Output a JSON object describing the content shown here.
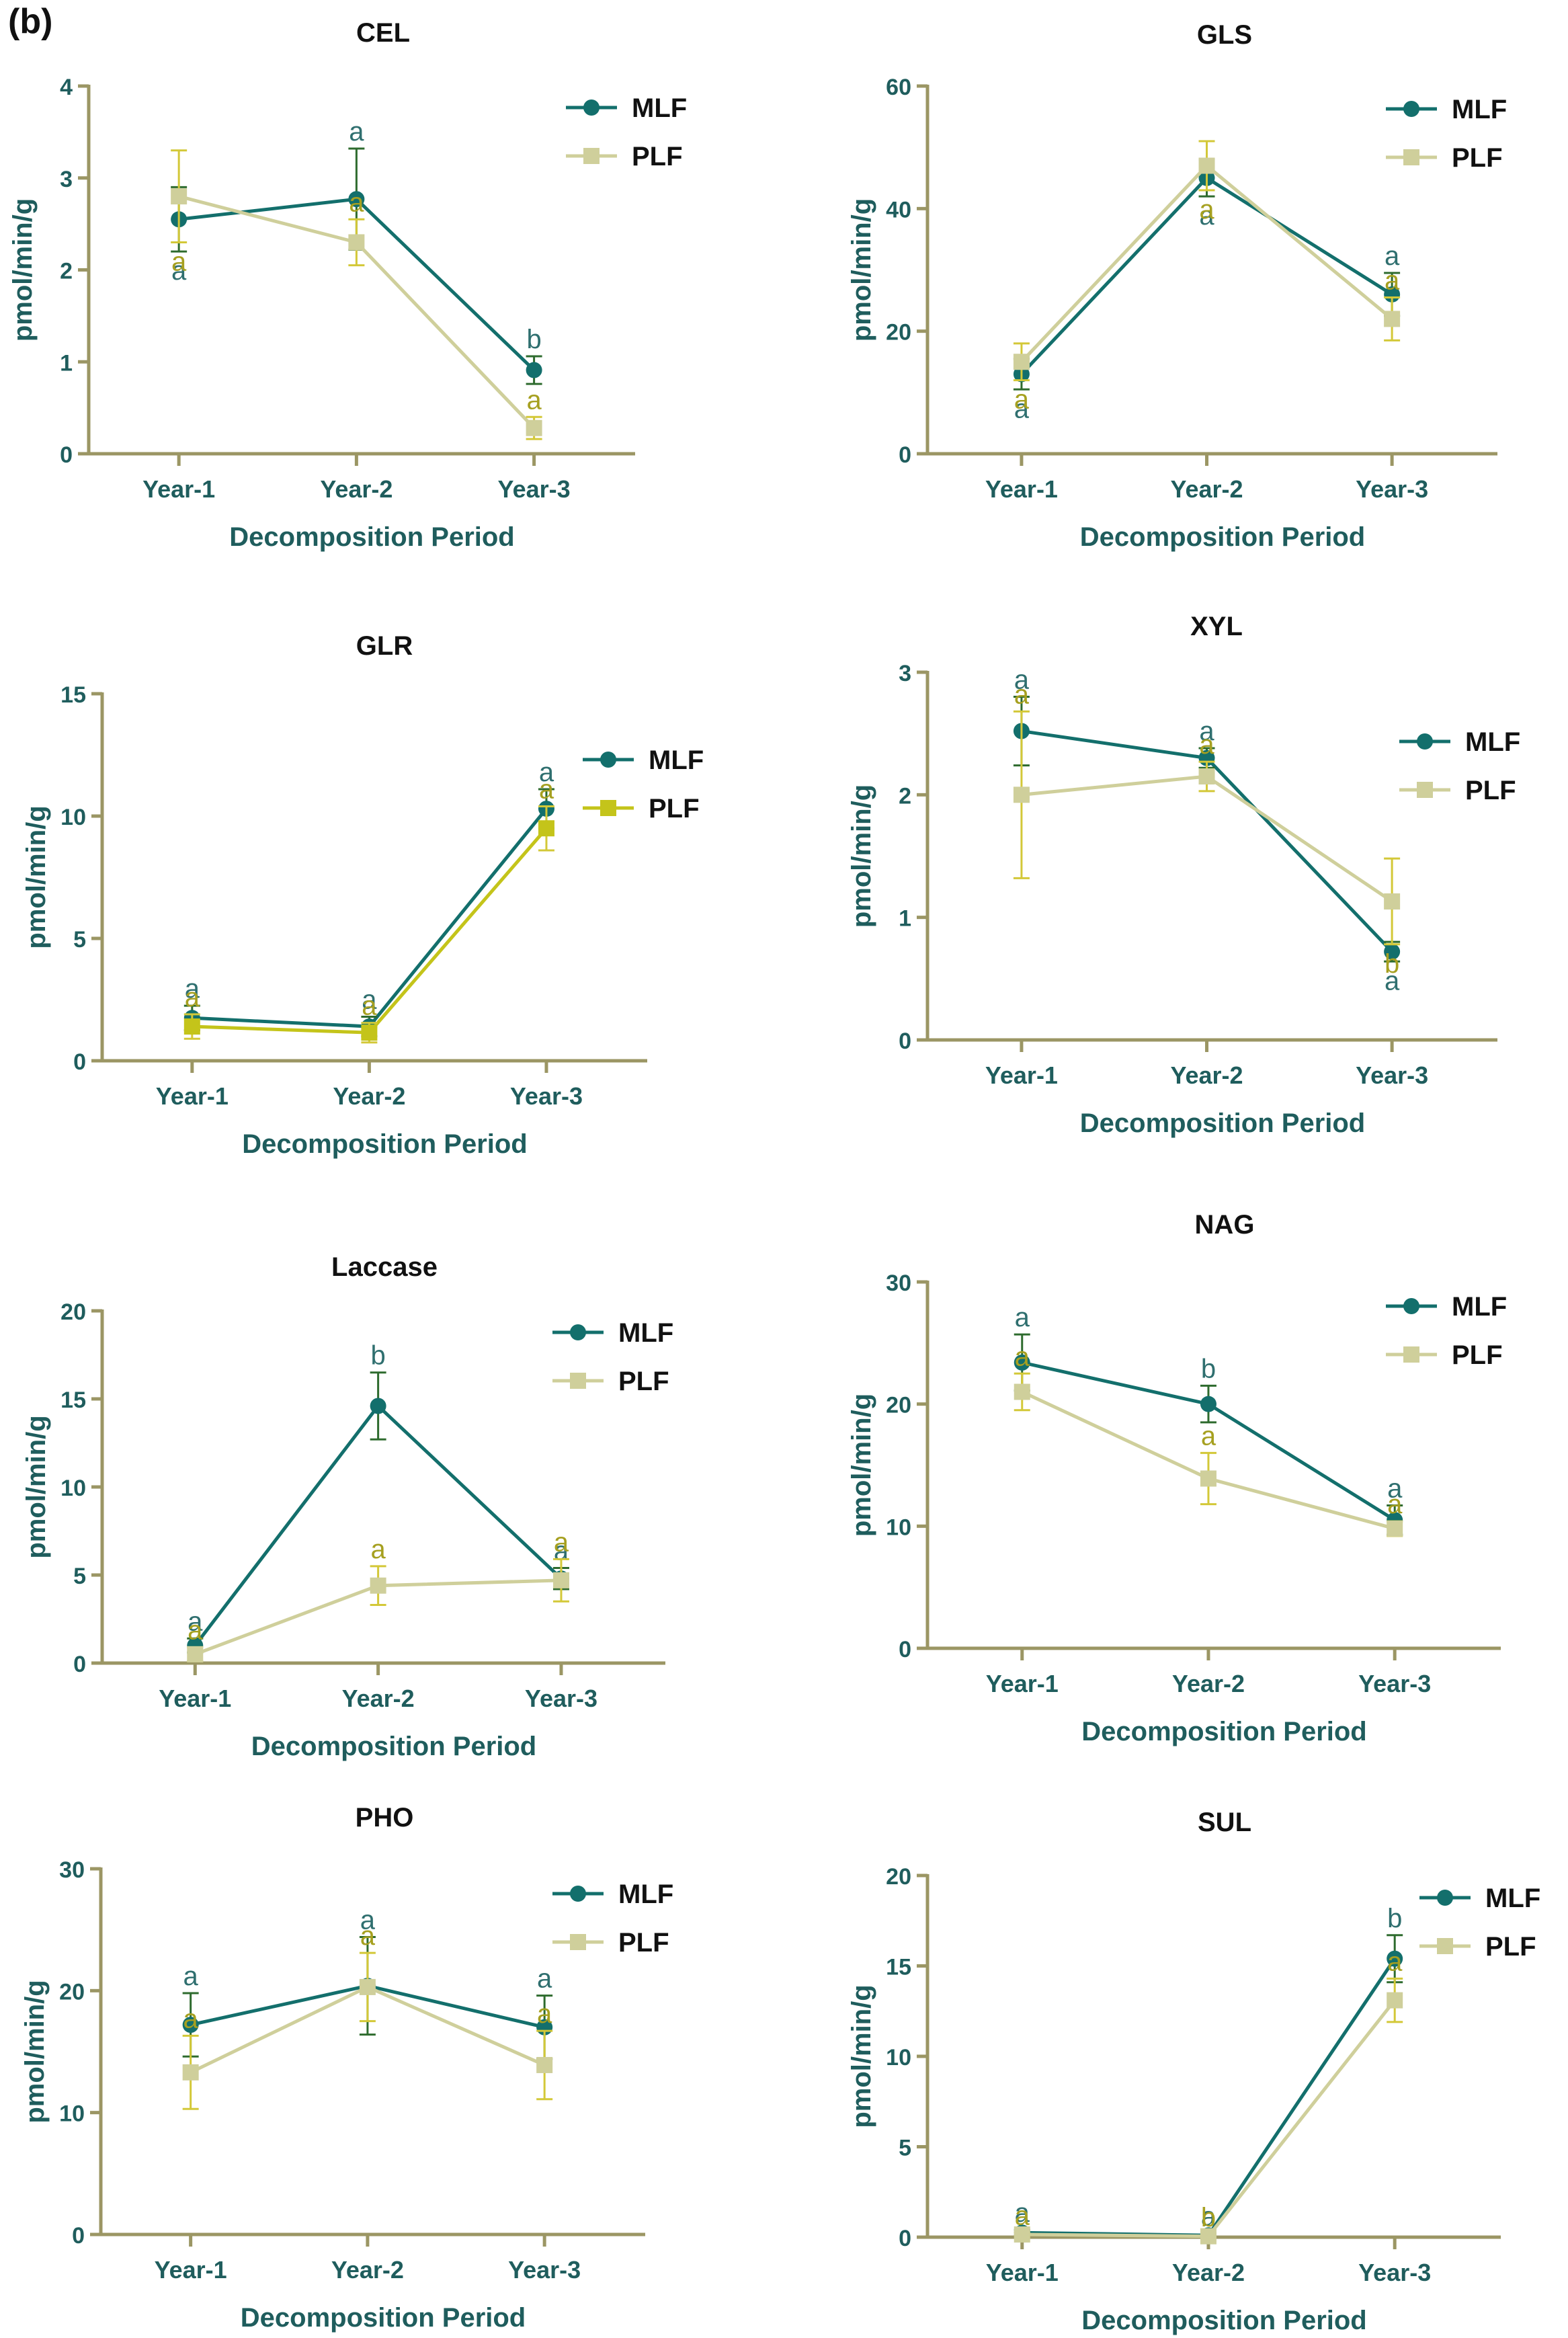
{
  "figure": {
    "panel_label": "(b)"
  },
  "chart_data": [
    {
      "type": "line",
      "title": "CEL",
      "xlabel": "Decomposition Period",
      "ylabel": "pmol/min/g",
      "categories": [
        "Year-1",
        "Year-2",
        "Year-3"
      ],
      "ylim": [
        0,
        4
      ],
      "yticks": [
        0,
        1,
        2,
        3,
        4
      ],
      "series": [
        {
          "name": "MLF",
          "color": "#136f6c",
          "values": [
            2.55,
            2.77,
            0.91
          ],
          "err": [
            0.35,
            0.55,
            0.15
          ],
          "letters": [
            "a",
            "a",
            "b"
          ]
        },
        {
          "name": "PLF",
          "color": "#cfcf9b",
          "values": [
            2.8,
            2.3,
            0.28
          ],
          "err": [
            0.5,
            0.25,
            0.12
          ],
          "letters": [
            "a",
            "a",
            "a"
          ]
        }
      ]
    },
    {
      "type": "line",
      "title": "GLS",
      "xlabel": "Decomposition Period",
      "ylabel": "pmol/min/g",
      "categories": [
        "Year-1",
        "Year-2",
        "Year-3"
      ],
      "ylim": [
        0,
        60
      ],
      "yticks": [
        0,
        20,
        40,
        60
      ],
      "series": [
        {
          "name": "MLF",
          "color": "#136f6c",
          "values": [
            13,
            45,
            26
          ],
          "err": [
            2.5,
            3,
            3.5
          ],
          "letters": [
            "a",
            "a",
            "a"
          ]
        },
        {
          "name": "PLF",
          "color": "#cfcf9b",
          "values": [
            15,
            47,
            22
          ],
          "err": [
            3,
            4,
            3.5
          ],
          "letters": [
            "a",
            "a",
            "a"
          ]
        }
      ]
    },
    {
      "type": "line",
      "title": "GLR",
      "xlabel": "Decomposition Period",
      "ylabel": "pmol/min/g",
      "categories": [
        "Year-1",
        "Year-2",
        "Year-3"
      ],
      "ylim": [
        0,
        15
      ],
      "yticks": [
        0,
        5,
        10,
        15
      ],
      "series": [
        {
          "name": "MLF",
          "color": "#136f6c",
          "values": [
            1.75,
            1.4,
            10.3
          ],
          "err": [
            0.5,
            0.4,
            0.8
          ],
          "letters": [
            "a",
            "a",
            "a"
          ]
        },
        {
          "name": "PLF",
          "color": "#c4c41a",
          "values": [
            1.4,
            1.15,
            9.5
          ],
          "err": [
            0.5,
            0.4,
            0.9
          ],
          "letters": [
            "a",
            "a",
            "a"
          ]
        }
      ]
    },
    {
      "type": "line",
      "title": "XYL",
      "xlabel": "Decomposition Period",
      "ylabel": "pmol/min/g",
      "categories": [
        "Year-1",
        "Year-2",
        "Year-3"
      ],
      "ylim": [
        0,
        3
      ],
      "yticks": [
        0,
        1,
        2,
        3
      ],
      "series": [
        {
          "name": "MLF",
          "color": "#136f6c",
          "values": [
            2.52,
            2.3,
            0.72
          ],
          "err": [
            0.28,
            0.08,
            0.08
          ],
          "letters": [
            "a",
            "a",
            "a"
          ]
        },
        {
          "name": "PLF",
          "color": "#cfcf9b",
          "values": [
            2.0,
            2.15,
            1.13
          ],
          "err": [
            0.68,
            0.12,
            0.35
          ],
          "letters": [
            "a",
            "a",
            "b"
          ]
        }
      ]
    },
    {
      "type": "line",
      "title": "Laccase",
      "xlabel": "Decomposition Period",
      "ylabel": "pmol/min/g",
      "categories": [
        "Year-1",
        "Year-2",
        "Year-3"
      ],
      "ylim": [
        0,
        20
      ],
      "yticks": [
        0,
        5,
        10,
        15,
        20
      ],
      "series": [
        {
          "name": "MLF",
          "color": "#136f6c",
          "values": [
            1.0,
            14.6,
            4.8
          ],
          "err": [
            0.4,
            1.9,
            0.6
          ],
          "letters": [
            "a",
            "b",
            "a"
          ]
        },
        {
          "name": "PLF",
          "color": "#cfcf9b",
          "values": [
            0.5,
            4.4,
            4.7
          ],
          "err": [
            0.4,
            1.1,
            1.2
          ],
          "letters": [
            "a",
            "a",
            "a"
          ]
        }
      ]
    },
    {
      "type": "line",
      "title": "NAG",
      "xlabel": "Decomposition Period",
      "ylabel": "pmol/min/g",
      "categories": [
        "Year-1",
        "Year-2",
        "Year-3"
      ],
      "ylim": [
        0,
        30
      ],
      "yticks": [
        0,
        10,
        20,
        30
      ],
      "series": [
        {
          "name": "MLF",
          "color": "#136f6c",
          "values": [
            23.4,
            20.0,
            10.5
          ],
          "err": [
            2.3,
            1.5,
            1.2
          ],
          "letters": [
            "a",
            "b",
            "a"
          ]
        },
        {
          "name": "PLF",
          "color": "#cfcf9b",
          "values": [
            21.0,
            13.9,
            9.8
          ],
          "err": [
            1.5,
            2.1,
            0.6
          ],
          "letters": [
            "a",
            "a",
            "a"
          ]
        }
      ]
    },
    {
      "type": "line",
      "title": "PHO",
      "xlabel": "Decomposition Period",
      "ylabel": "pmol/min/g",
      "categories": [
        "Year-1",
        "Year-2",
        "Year-3"
      ],
      "ylim": [
        0,
        30
      ],
      "yticks": [
        0,
        10,
        20,
        30
      ],
      "series": [
        {
          "name": "MLF",
          "color": "#136f6c",
          "values": [
            17.2,
            20.4,
            17.0
          ],
          "err": [
            2.6,
            4.0,
            2.6
          ],
          "letters": [
            "a",
            "a",
            "a"
          ]
        },
        {
          "name": "PLF",
          "color": "#cfcf9b",
          "values": [
            13.3,
            20.3,
            13.9
          ],
          "err": [
            3.0,
            2.8,
            2.8
          ],
          "letters": [
            "a",
            "a",
            "a"
          ]
        }
      ]
    },
    {
      "type": "line",
      "title": "SUL",
      "xlabel": "Decomposition Period",
      "ylabel": "pmol/min/g",
      "categories": [
        "Year-1",
        "Year-2",
        "Year-3"
      ],
      "ylim": [
        0,
        20
      ],
      "yticks": [
        0,
        5,
        10,
        15,
        20
      ],
      "series": [
        {
          "name": "MLF",
          "color": "#136f6c",
          "values": [
            0.25,
            0.1,
            15.4
          ],
          "err": [
            0.15,
            0.1,
            1.3
          ],
          "letters": [
            "a",
            "a",
            "b"
          ]
        },
        {
          "name": "PLF",
          "color": "#cfcf9b",
          "values": [
            0.15,
            0.05,
            13.1
          ],
          "err": [
            0.1,
            0.1,
            1.2
          ],
          "letters": [
            "a",
            "b",
            "a"
          ]
        }
      ]
    }
  ]
}
